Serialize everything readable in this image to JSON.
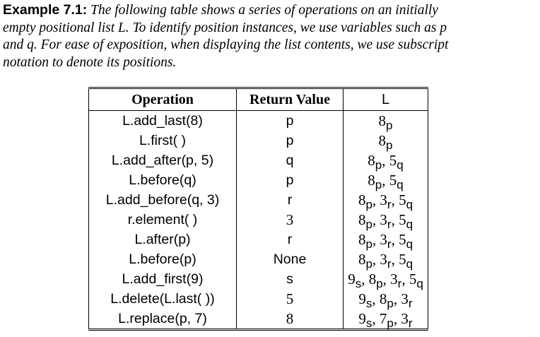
{
  "intro": {
    "label": "Example 7.1:",
    "lines": [
      " The following table shows a series of operations on an initially",
      "empty positional list L. To identify position instances, we use variables such as p",
      "and q. For ease of exposition, when displaying the list contents, we use subscript",
      "notation to denote its positions."
    ]
  },
  "table": {
    "headers": [
      "Operation",
      "Return Value",
      "L"
    ],
    "rows": [
      {
        "operation": "L.add_last(8)",
        "return_value": "p",
        "list": [
          {
            "v": "8",
            "p": "p"
          }
        ]
      },
      {
        "operation": "L.first( )",
        "return_value": "p",
        "list": [
          {
            "v": "8",
            "p": "p"
          }
        ]
      },
      {
        "operation": "L.add_after(p, 5)",
        "return_value": "q",
        "list": [
          {
            "v": "8",
            "p": "p"
          },
          {
            "v": "5",
            "p": "q"
          }
        ]
      },
      {
        "operation": "L.before(q)",
        "return_value": "p",
        "list": [
          {
            "v": "8",
            "p": "p"
          },
          {
            "v": "5",
            "p": "q"
          }
        ]
      },
      {
        "operation": "L.add_before(q, 3)",
        "return_value": "r",
        "list": [
          {
            "v": "8",
            "p": "p"
          },
          {
            "v": "3",
            "p": "r"
          },
          {
            "v": "5",
            "p": "q"
          }
        ]
      },
      {
        "operation": "r.element( )",
        "return_value": "3",
        "list": [
          {
            "v": "8",
            "p": "p"
          },
          {
            "v": "3",
            "p": "r"
          },
          {
            "v": "5",
            "p": "q"
          }
        ]
      },
      {
        "operation": "L.after(p)",
        "return_value": "r",
        "list": [
          {
            "v": "8",
            "p": "p"
          },
          {
            "v": "3",
            "p": "r"
          },
          {
            "v": "5",
            "p": "q"
          }
        ]
      },
      {
        "operation": "L.before(p)",
        "return_value": "None",
        "list": [
          {
            "v": "8",
            "p": "p"
          },
          {
            "v": "3",
            "p": "r"
          },
          {
            "v": "5",
            "p": "q"
          }
        ]
      },
      {
        "operation": "L.add_first(9)",
        "return_value": "s",
        "list": [
          {
            "v": "9",
            "p": "s"
          },
          {
            "v": "8",
            "p": "p"
          },
          {
            "v": "3",
            "p": "r"
          },
          {
            "v": "5",
            "p": "q"
          }
        ]
      },
      {
        "operation": "L.delete(L.last( ))",
        "return_value": "5",
        "list": [
          {
            "v": "9",
            "p": "s"
          },
          {
            "v": "8",
            "p": "p"
          },
          {
            "v": "3",
            "p": "r"
          }
        ]
      },
      {
        "operation": "L.replace(p, 7)",
        "return_value": "8",
        "list": [
          {
            "v": "9",
            "p": "s"
          },
          {
            "v": "7",
            "p": "p"
          },
          {
            "v": "3",
            "p": "r"
          }
        ]
      }
    ]
  }
}
